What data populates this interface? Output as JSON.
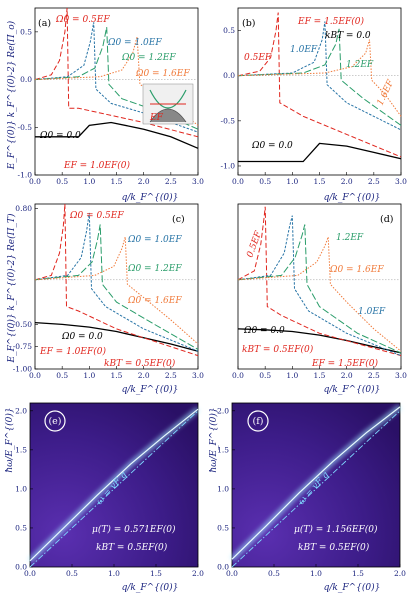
{
  "colors": {
    "axis_text": "#1a237e",
    "red": "#e0261e",
    "blue": "#2874a6",
    "green": "#2a9d6a",
    "orange": "#f07a3a",
    "black": "#000000",
    "map_bg": "#3c1c88",
    "map_line": "#7fd8ff"
  },
  "chart_data": [
    {
      "id": "a",
      "type": "line",
      "panel_label": "(a)",
      "ylabel": "E_F^{(0)} k_F^{(0)-2} Re(Π_o)",
      "xlabel": "q/k_F^{(0)}",
      "xlim": [
        0,
        3
      ],
      "ylim": [
        -1.0,
        0.75
      ],
      "x_ticks": [
        "0.0",
        "0.5",
        "1.0",
        "1.5",
        "2.0",
        "2.5",
        "3.0"
      ],
      "y_ticks": [
        {
          "v": 0.5,
          "t": "0.5"
        },
        {
          "v": 0.0,
          "t": "0.0"
        },
        {
          "v": -0.5,
          "t": "-0.5"
        },
        {
          "v": -1.0,
          "t": "-1.0"
        }
      ],
      "annotations": [
        "Ω0 = 0.5EF",
        "Ω0 = 1.0EF",
        "Ω0 = 1.2EF",
        "Ω0 = 1.6EF",
        "Ω0 = 0.0",
        "EF = 1.0EF(0)",
        "EF"
      ],
      "series": [
        {
          "name": "Ω0 = 0.0",
          "color": "black",
          "points": [
            [
              0,
              -0.6
            ],
            [
              0.8,
              -0.6
            ],
            [
              1.0,
              -0.48
            ],
            [
              1.4,
              -0.45
            ],
            [
              2.0,
              -0.52
            ],
            [
              2.5,
              -0.6
            ],
            [
              3.0,
              -0.72
            ]
          ]
        },
        {
          "name": "Ω0 = 0.5EF",
          "color": "red",
          "points": [
            [
              0,
              0.0
            ],
            [
              0.3,
              0.05
            ],
            [
              0.45,
              0.2
            ],
            [
              0.55,
              0.5
            ],
            [
              0.59,
              0.75
            ],
            [
              0.62,
              -0.3
            ],
            [
              0.8,
              -0.3
            ],
            [
              1.2,
              -0.35
            ],
            [
              2.0,
              -0.45
            ],
            [
              3.0,
              -0.6
            ]
          ]
        },
        {
          "name": "Ω0 = 1.0EF",
          "color": "blue",
          "points": [
            [
              0,
              0.0
            ],
            [
              0.6,
              0.03
            ],
            [
              0.9,
              0.15
            ],
            [
              1.02,
              0.4
            ],
            [
              1.08,
              0.6
            ],
            [
              1.12,
              -0.1
            ],
            [
              1.4,
              -0.25
            ],
            [
              2.0,
              -0.35
            ],
            [
              3.0,
              -0.55
            ]
          ]
        },
        {
          "name": "Ω0 = 1.2EF",
          "color": "green",
          "points": [
            [
              0,
              0.0
            ],
            [
              0.8,
              0.03
            ],
            [
              1.1,
              0.12
            ],
            [
              1.25,
              0.35
            ],
            [
              1.32,
              0.55
            ],
            [
              1.36,
              -0.05
            ],
            [
              1.6,
              -0.2
            ],
            [
              2.2,
              -0.32
            ],
            [
              3.0,
              -0.52
            ]
          ]
        },
        {
          "name": "Ω0 = 1.6EF",
          "color": "orange",
          "points": [
            [
              0,
              0.0
            ],
            [
              1.2,
              0.03
            ],
            [
              1.6,
              0.1
            ],
            [
              1.8,
              0.28
            ],
            [
              1.88,
              0.45
            ],
            [
              1.93,
              -0.05
            ],
            [
              2.2,
              -0.15
            ],
            [
              2.6,
              -0.3
            ],
            [
              3.0,
              -0.48
            ]
          ]
        }
      ]
    },
    {
      "id": "b",
      "type": "line",
      "panel_label": "(b)",
      "ylabel": "",
      "xlabel": "q/k_F^{(0)}",
      "xlim": [
        0,
        3
      ],
      "ylim": [
        -1.1,
        0.75
      ],
      "x_ticks": [
        "0.0",
        "0.5",
        "1.0",
        "1.5",
        "2.0",
        "2.5",
        "3.0"
      ],
      "y_ticks": [
        {
          "v": 0.5,
          "t": "0.5"
        },
        {
          "v": 0.0,
          "t": "0.0"
        },
        {
          "v": -0.5,
          "t": "-0.5"
        },
        {
          "v": -1.0,
          "t": "-1.0"
        }
      ],
      "annotations": [
        "EF = 1.5EF(0)",
        "kBT = 0.0",
        "0.5EF",
        "1.0EF",
        "1.2EF",
        "1.6EF",
        "Ω0 = 0.0"
      ],
      "series": [
        {
          "name": "Ω0 = 0.0",
          "color": "black",
          "points": [
            [
              0,
              -0.95
            ],
            [
              1.2,
              -0.95
            ],
            [
              1.5,
              -0.75
            ],
            [
              2.0,
              -0.78
            ],
            [
              2.5,
              -0.85
            ],
            [
              3.0,
              -0.92
            ]
          ]
        },
        {
          "name": "0.5EF",
          "color": "red",
          "points": [
            [
              0,
              0.0
            ],
            [
              0.4,
              0.05
            ],
            [
              0.6,
              0.2
            ],
            [
              0.7,
              0.5
            ],
            [
              0.74,
              0.7
            ],
            [
              0.77,
              -0.3
            ],
            [
              1.2,
              -0.45
            ],
            [
              2.0,
              -0.65
            ],
            [
              3.0,
              -0.9
            ]
          ]
        },
        {
          "name": "1.0EF",
          "color": "blue",
          "points": [
            [
              0,
              0.0
            ],
            [
              1.0,
              0.03
            ],
            [
              1.4,
              0.15
            ],
            [
              1.55,
              0.4
            ],
            [
              1.6,
              0.6
            ],
            [
              1.64,
              -0.1
            ],
            [
              2.0,
              -0.3
            ],
            [
              3.0,
              -0.6
            ]
          ]
        },
        {
          "name": "1.2EF",
          "color": "green",
          "points": [
            [
              0,
              0.0
            ],
            [
              1.2,
              0.03
            ],
            [
              1.6,
              0.12
            ],
            [
              1.8,
              0.35
            ],
            [
              1.86,
              0.52
            ],
            [
              1.9,
              -0.05
            ],
            [
              2.3,
              -0.25
            ],
            [
              3.0,
              -0.55
            ]
          ]
        },
        {
          "name": "1.6EF",
          "color": "orange",
          "points": [
            [
              0,
              0.0
            ],
            [
              1.6,
              0.03
            ],
            [
              2.1,
              0.1
            ],
            [
              2.35,
              0.25
            ],
            [
              2.42,
              0.4
            ],
            [
              2.46,
              -0.05
            ],
            [
              2.7,
              -0.2
            ],
            [
              3.0,
              -0.45
            ]
          ]
        }
      ]
    },
    {
      "id": "c",
      "type": "line",
      "panel_label": "(c)",
      "ylabel": "E_F^{(0)} k_F^{(0)-2} Re(Π_T)",
      "xlabel": "q/k_F^{(0)}",
      "xlim": [
        0,
        3
      ],
      "ylim": [
        -1.0,
        0.85
      ],
      "x_ticks": [
        "0.0",
        "0.5",
        "1.0",
        "1.5",
        "2.0",
        "2.5",
        "3.0"
      ],
      "y_ticks": [
        {
          "v": 0.8,
          "t": "0.80"
        },
        {
          "v": -0.5,
          "t": "-0.50"
        },
        {
          "v": -0.75,
          "t": "-0.75"
        },
        {
          "v": -1.0,
          "t": "-1.00"
        }
      ],
      "annotations": [
        "Ω0 = 0.5EF",
        "Ω0 = 1.0EF",
        "Ω0 = 1.2EF",
        "Ω0 = 1.6EF",
        "Ω0 = 0.0",
        "EF = 1.0EF(0)",
        "kBT = 0.5EF(0)"
      ],
      "series": [
        {
          "name": "Ω0 = 0.0",
          "color": "black",
          "points": [
            [
              0,
              -0.48
            ],
            [
              0.5,
              -0.5
            ],
            [
              1.0,
              -0.53
            ],
            [
              1.5,
              -0.58
            ],
            [
              2.0,
              -0.65
            ],
            [
              2.5,
              -0.72
            ],
            [
              3.0,
              -0.8
            ]
          ]
        },
        {
          "name": "Ω0 = 0.5EF",
          "color": "red",
          "points": [
            [
              0,
              0.0
            ],
            [
              0.3,
              0.05
            ],
            [
              0.45,
              0.3
            ],
            [
              0.52,
              0.6
            ],
            [
              0.55,
              0.85
            ],
            [
              0.58,
              -0.3
            ],
            [
              0.8,
              -0.35
            ],
            [
              1.5,
              -0.55
            ],
            [
              3.0,
              -0.85
            ]
          ]
        },
        {
          "name": "Ω0 = 1.0EF",
          "color": "blue",
          "points": [
            [
              0,
              0.0
            ],
            [
              0.6,
              0.05
            ],
            [
              0.85,
              0.25
            ],
            [
              0.95,
              0.55
            ],
            [
              1.0,
              0.75
            ],
            [
              1.04,
              -0.1
            ],
            [
              1.3,
              -0.3
            ],
            [
              2.0,
              -0.55
            ],
            [
              3.0,
              -0.8
            ]
          ]
        },
        {
          "name": "Ω0 = 1.2EF",
          "color": "green",
          "points": [
            [
              0,
              0.0
            ],
            [
              0.8,
              0.05
            ],
            [
              1.05,
              0.2
            ],
            [
              1.15,
              0.45
            ],
            [
              1.2,
              0.62
            ],
            [
              1.24,
              -0.05
            ],
            [
              1.5,
              -0.25
            ],
            [
              2.2,
              -0.5
            ],
            [
              3.0,
              -0.78
            ]
          ]
        },
        {
          "name": "Ω0 = 1.6EF",
          "color": "orange",
          "points": [
            [
              0,
              0.0
            ],
            [
              1.1,
              0.05
            ],
            [
              1.45,
              0.15
            ],
            [
              1.6,
              0.35
            ],
            [
              1.66,
              0.48
            ],
            [
              1.7,
              -0.05
            ],
            [
              2.0,
              -0.2
            ],
            [
              2.5,
              -0.45
            ],
            [
              3.0,
              -0.72
            ]
          ]
        }
      ]
    },
    {
      "id": "d",
      "type": "line",
      "panel_label": "(d)",
      "ylabel": "",
      "xlabel": "q/k_F^{(0)}",
      "xlim": [
        0,
        3
      ],
      "ylim": [
        -1.0,
        0.85
      ],
      "x_ticks": [
        "0.0",
        "0.5",
        "1.0",
        "1.5",
        "2.0",
        "2.5",
        "3.0"
      ],
      "y_ticks": [],
      "annotations": [
        "0.5EF",
        "1.2EF",
        "Ω0 = 1.6EF",
        "1.0EF",
        "Ω0 = 0.0",
        "kBT = 0.5EF(0)",
        "EF = 1.5EF(0)"
      ],
      "series": [
        {
          "name": "Ω0 = 0.0",
          "color": "black",
          "points": [
            [
              0,
              -0.55
            ],
            [
              0.5,
              -0.56
            ],
            [
              1.0,
              -0.58
            ],
            [
              1.5,
              -0.62
            ],
            [
              2.0,
              -0.68
            ],
            [
              2.5,
              -0.75
            ],
            [
              3.0,
              -0.82
            ]
          ]
        },
        {
          "name": "0.5EF",
          "color": "red",
          "points": [
            [
              0,
              0.0
            ],
            [
              0.3,
              0.1
            ],
            [
              0.42,
              0.4
            ],
            [
              0.48,
              0.7
            ],
            [
              0.5,
              0.82
            ],
            [
              0.54,
              -0.3
            ],
            [
              0.8,
              -0.4
            ],
            [
              1.5,
              -0.6
            ],
            [
              3.0,
              -0.85
            ]
          ]
        },
        {
          "name": "1.0EF",
          "color": "blue",
          "points": [
            [
              0,
              0.0
            ],
            [
              0.6,
              0.05
            ],
            [
              0.85,
              0.3
            ],
            [
              0.95,
              0.6
            ],
            [
              1.0,
              0.72
            ],
            [
              1.04,
              -0.1
            ],
            [
              1.3,
              -0.35
            ],
            [
              2.0,
              -0.6
            ],
            [
              3.0,
              -0.85
            ]
          ]
        },
        {
          "name": "1.2EF",
          "color": "green",
          "points": [
            [
              0,
              0.0
            ],
            [
              0.8,
              0.05
            ],
            [
              1.05,
              0.25
            ],
            [
              1.18,
              0.5
            ],
            [
              1.23,
              0.62
            ],
            [
              1.27,
              -0.05
            ],
            [
              1.5,
              -0.3
            ],
            [
              2.2,
              -0.6
            ],
            [
              3.0,
              -0.82
            ]
          ]
        },
        {
          "name": "Ω0 = 1.6EF",
          "color": "orange",
          "points": [
            [
              0,
              0.0
            ],
            [
              1.1,
              0.05
            ],
            [
              1.45,
              0.2
            ],
            [
              1.6,
              0.38
            ],
            [
              1.66,
              0.48
            ],
            [
              1.7,
              -0.05
            ],
            [
              2.0,
              -0.25
            ],
            [
              2.5,
              -0.55
            ],
            [
              3.0,
              -0.8
            ]
          ]
        }
      ]
    },
    {
      "id": "e",
      "type": "heatmap",
      "panel_label": "(e)",
      "ylabel": "ħω/E_F^{(0)}",
      "xlabel": "q/k_F^{(0)}",
      "xlim": [
        0,
        2
      ],
      "ylim": [
        0,
        2.1
      ],
      "x_ticks": [
        "0.0",
        "0.5",
        "1.0",
        "1.5",
        "2.0"
      ],
      "y_ticks": [
        {
          "v": 2.0,
          "t": "2.0"
        },
        {
          "v": 1.5,
          "t": "1.5"
        },
        {
          "v": 1.0,
          "t": "1.0"
        },
        {
          "v": 0.5,
          "t": "0.5"
        },
        {
          "v": 0.0,
          "t": "0.0"
        }
      ],
      "annotations": [
        "ω = vF q",
        "μ(T) = 0.571EF(0)",
        "kBT = 0.5EF(0)"
      ],
      "series": [
        {
          "name": "plasmon",
          "points": [
            [
              0,
              0.08
            ],
            [
              0.4,
              0.5
            ],
            [
              0.8,
              0.92
            ],
            [
              1.2,
              1.32
            ],
            [
              1.6,
              1.68
            ],
            [
              2.0,
              2.02
            ]
          ]
        },
        {
          "name": "ω = vF q",
          "points": [
            [
              0,
              0
            ],
            [
              2.0,
              2.0
            ]
          ]
        }
      ]
    },
    {
      "id": "f",
      "type": "heatmap",
      "panel_label": "(f)",
      "ylabel": "ħω/E_F^{(0)}",
      "xlabel": "q/k_F^{(0)}",
      "xlim": [
        0,
        2
      ],
      "ylim": [
        0,
        2.1
      ],
      "x_ticks": [
        "0.0",
        "0.5",
        "1.0",
        "1.5",
        "2.0"
      ],
      "y_ticks": [
        {
          "v": 2.0,
          "t": "2.0"
        },
        {
          "v": 1.5,
          "t": "1.5"
        },
        {
          "v": 1.0,
          "t": "1.0"
        },
        {
          "v": 0.5,
          "t": "0.5"
        },
        {
          "v": 0.0,
          "t": "0.0"
        }
      ],
      "annotations": [
        "ω = vF q",
        "μ(T) = 1.156EF(0)",
        "kBT = 0.5EF(0)"
      ],
      "series": [
        {
          "name": "plasmon",
          "points": [
            [
              0,
              0.1
            ],
            [
              0.4,
              0.52
            ],
            [
              0.8,
              0.95
            ],
            [
              1.2,
              1.35
            ],
            [
              1.6,
              1.72
            ],
            [
              2.0,
              2.05
            ]
          ]
        },
        {
          "name": "ω = vF q",
          "points": [
            [
              0,
              0
            ],
            [
              2.0,
              2.0
            ]
          ]
        }
      ]
    }
  ]
}
